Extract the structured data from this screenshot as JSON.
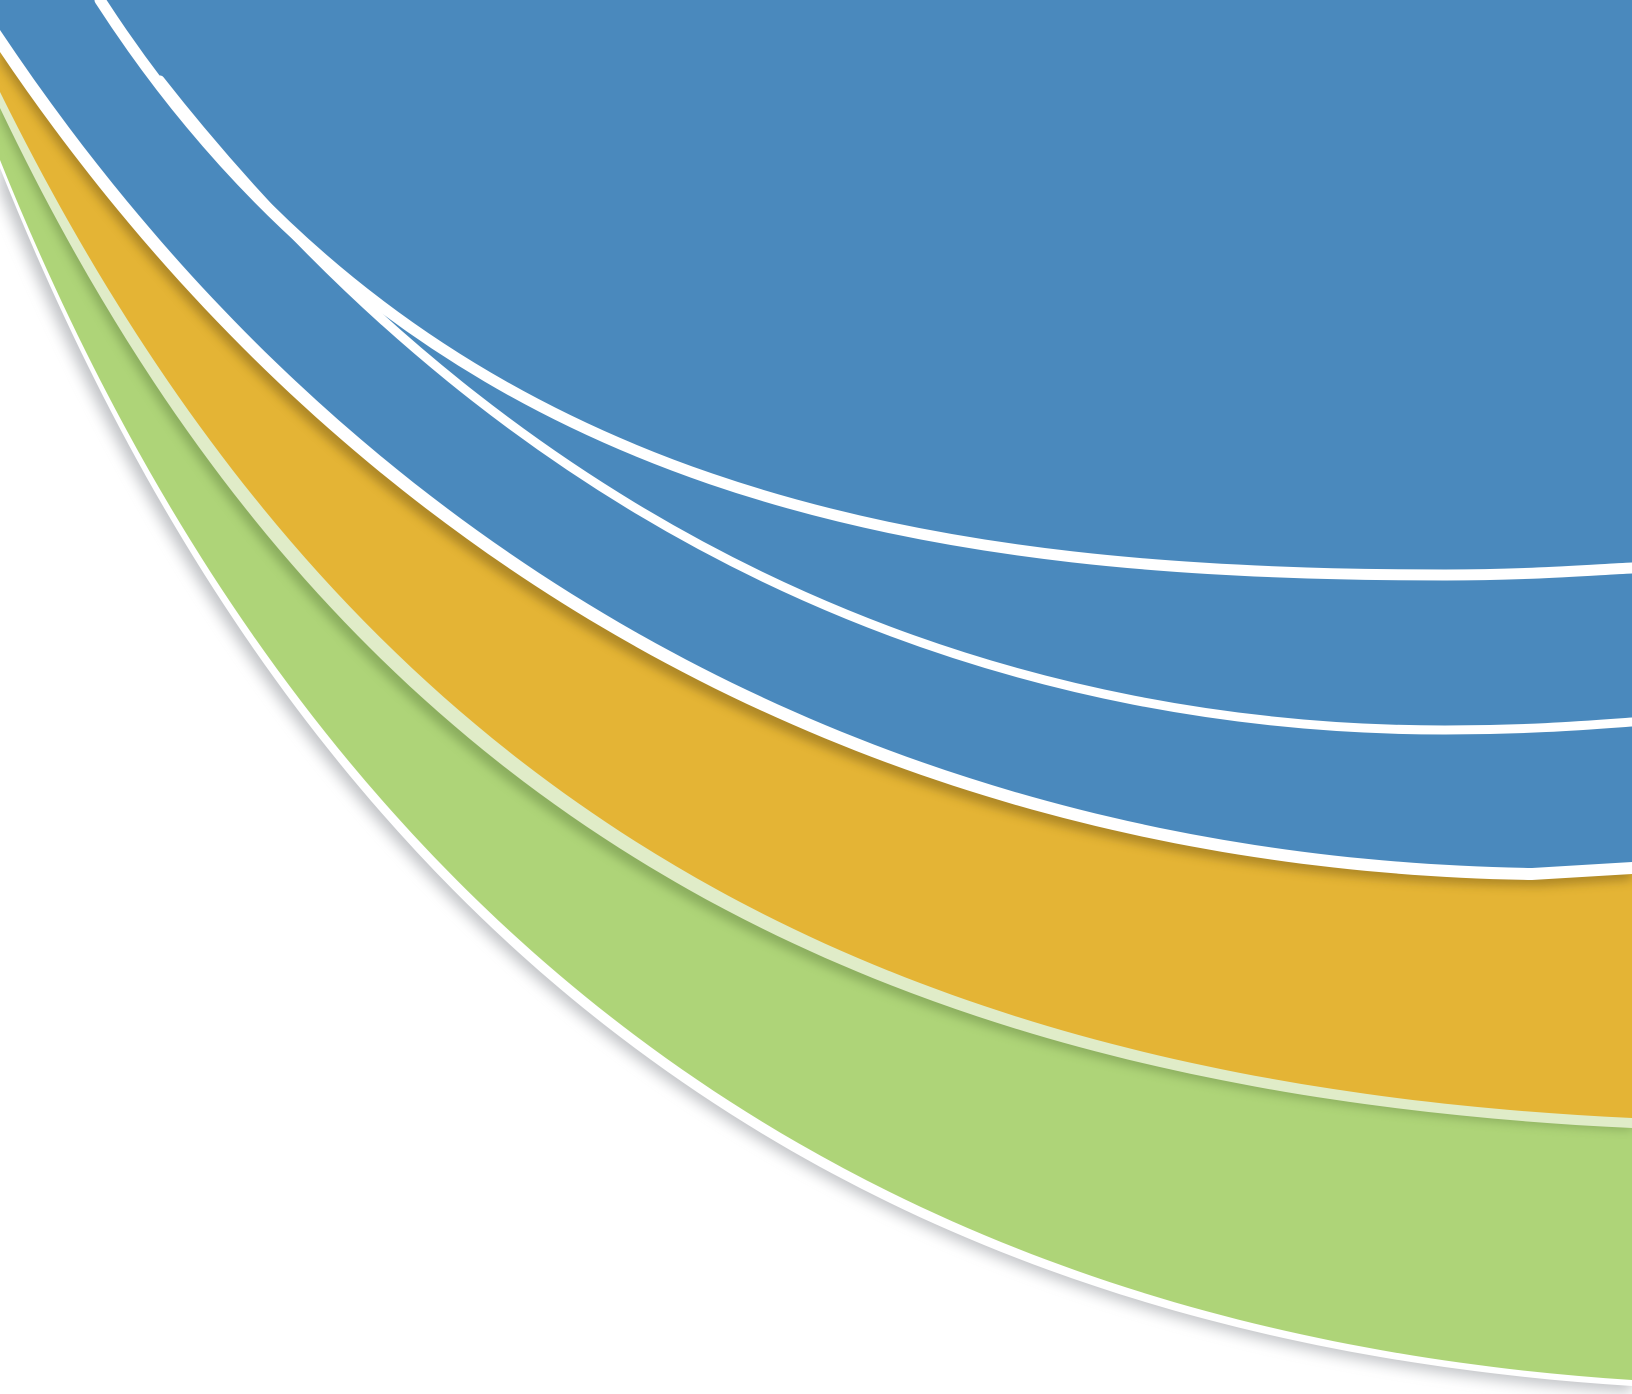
{
  "graphic": {
    "kind": "abstract curved color bands",
    "colors": {
      "background": "#ffffff",
      "blue": "#4a89bd",
      "gold": "#e4b435",
      "green": "#aed478",
      "light_green_stripe": "#e0ecc8",
      "white_stripe": "#ffffff",
      "shadow": "#8f9399"
    },
    "bands": [
      {
        "name": "blue-band",
        "color": "#4a89bd"
      },
      {
        "name": "gold-band",
        "color": "#e4b435"
      },
      {
        "name": "green-band",
        "color": "#aed478"
      }
    ]
  }
}
